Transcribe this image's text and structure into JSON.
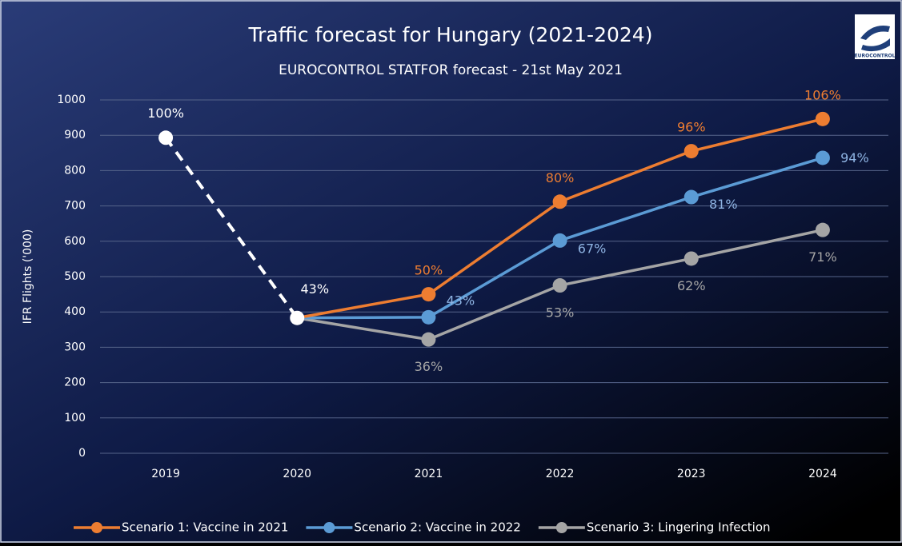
{
  "chart_data": {
    "type": "line",
    "title": "Traffic forecast for Hungary (2021-2024)",
    "subtitle": "EUROCONTROL STATFOR forecast  - 21st May 2021",
    "y_label": "IFR Flights ('000)",
    "logo_text": "EUROCONTROL",
    "categories": [
      "2019",
      "2020",
      "2021",
      "2022",
      "2023",
      "2024"
    ],
    "ylim": [
      0,
      1000
    ],
    "yticks": [
      0,
      100,
      200,
      300,
      400,
      500,
      600,
      700,
      800,
      900,
      1000
    ],
    "grid": true,
    "legend": "bottom",
    "series": [
      {
        "color": "#ffffff",
        "dashed": true,
        "label_color": "#ffffff",
        "values": [
          893,
          383,
          null,
          null,
          null,
          null
        ],
        "point_labels": [
          "100%",
          "43%",
          null,
          null,
          null,
          null
        ]
      },
      {
        "name": "Scenario 1: Vaccine in 2021",
        "color": "#ed7d31",
        "label_color": "#ed7d31",
        "values": [
          null,
          383,
          450,
          712,
          855,
          946
        ],
        "point_labels": [
          null,
          null,
          "50%",
          "80%",
          "96%",
          "106%"
        ]
      },
      {
        "name": "Scenario 2: Vaccine in 2022",
        "color": "#5b9bd5",
        "label_color": "#8fb4e3",
        "values": [
          null,
          383,
          385,
          602,
          725,
          836
        ],
        "point_labels": [
          null,
          null,
          "43%",
          "67%",
          "81%",
          "94%"
        ]
      },
      {
        "name": "Scenario 3: Lingering Infection",
        "color": "#a5a5a5",
        "label_color": "#a5a5a5",
        "values": [
          null,
          383,
          322,
          475,
          551,
          632
        ],
        "point_labels": [
          null,
          null,
          "36%",
          "53%",
          "62%",
          "71%"
        ]
      }
    ]
  }
}
